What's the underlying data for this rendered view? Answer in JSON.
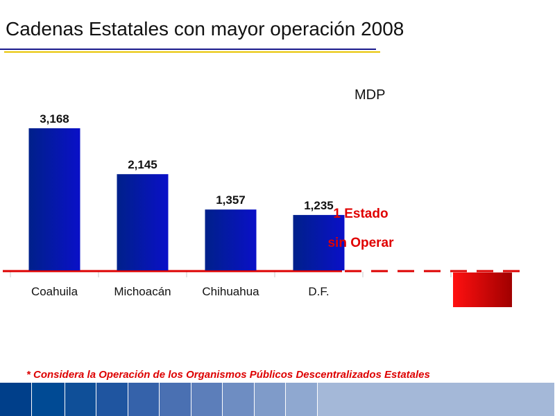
{
  "header": {
    "title": "Cadenas Estatales con mayor operación 2008"
  },
  "chart_data": {
    "type": "bar",
    "categories": [
      "Coahuila",
      "Michoacán",
      "Chihuahua",
      "D.F."
    ],
    "values": [
      3168,
      2145,
      1357,
      1235
    ],
    "value_labels": [
      "3,168",
      "2,145",
      "1,357",
      "1,235"
    ],
    "title": "",
    "unit_label": "MDP",
    "ylim": [
      0,
      3500
    ],
    "grid": false,
    "bar_color": "#0a10c8",
    "bar_color_dark": "#00208a",
    "baseline_color": "#dd0000",
    "annotation": {
      "lines": [
        "1 Estado",
        "sin Operar"
      ],
      "color": "#e00000"
    }
  },
  "footnote": "* Considera la Operación de los Organismos Públicos Descentralizados Estatales",
  "colors": {
    "title_rule_blue": "#1a1a8c",
    "title_rule_yellow": "#e8c400",
    "footer_strip": [
      "#003f8a",
      "#004a94",
      "#0f4f98",
      "#1f55a0",
      "#3562aa",
      "#4a70b2",
      "#5c7eba",
      "#6e8dc2",
      "#7f9bc9",
      "#8fa8d0",
      "#a4b8d8"
    ]
  }
}
